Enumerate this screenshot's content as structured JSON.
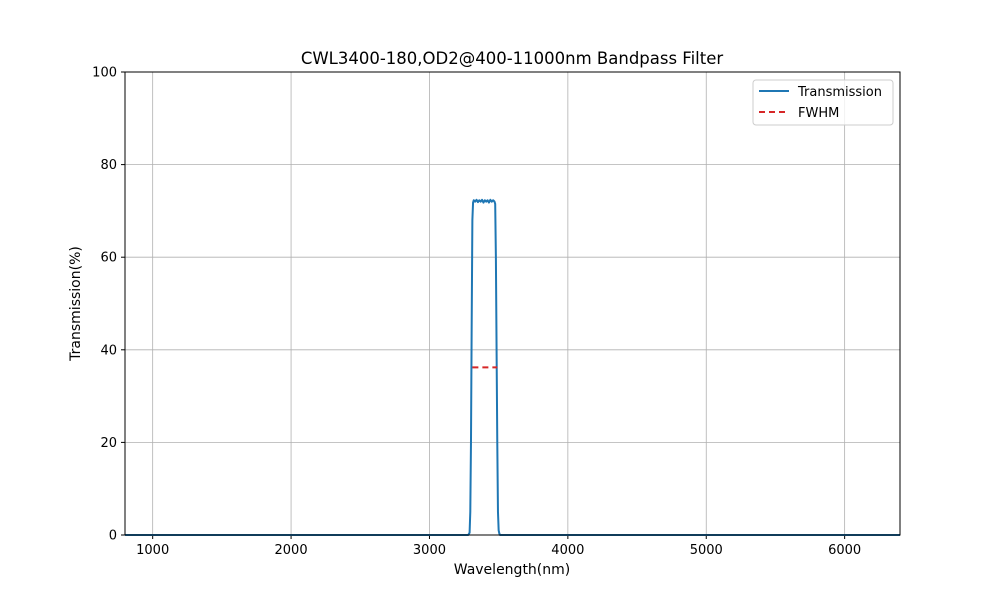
{
  "chart_data": {
    "type": "line",
    "title": "CWL3400-180,OD2@400-11000nm Bandpass Filter",
    "xlabel": "Wavelength(nm)",
    "ylabel": "Transmission(%)",
    "xlim": [
      800,
      6400
    ],
    "ylim": [
      0,
      100
    ],
    "xticks": [
      1000,
      2000,
      3000,
      4000,
      5000,
      6000
    ],
    "yticks": [
      0,
      20,
      40,
      60,
      80,
      100
    ],
    "grid": true,
    "legend_position": "top-right",
    "series": [
      {
        "name": "Transmission",
        "color": "#1f77b4",
        "style": "solid",
        "x": [
          800,
          3280,
          3290,
          3295,
          3300,
          3305,
          3310,
          3315,
          3320,
          3330,
          3340,
          3350,
          3360,
          3370,
          3380,
          3390,
          3400,
          3410,
          3420,
          3430,
          3440,
          3450,
          3460,
          3470,
          3475,
          3480,
          3485,
          3490,
          3495,
          3500,
          3505,
          3510,
          3520,
          6400
        ],
        "y": [
          0,
          0,
          0.5,
          5,
          20,
          45,
          68,
          71.8,
          72.3,
          72.0,
          72.4,
          71.9,
          72.3,
          72.0,
          72.4,
          71.8,
          72.3,
          72.0,
          72.3,
          71.8,
          72.4,
          72.0,
          72.3,
          72.0,
          71.5,
          60,
          40,
          20,
          5,
          1,
          0.3,
          0,
          0,
          0
        ]
      },
      {
        "name": "FWHM",
        "color": "#d62728",
        "style": "dashed",
        "x": [
          3310,
          3490
        ],
        "y": [
          36.2,
          36.2
        ]
      }
    ]
  }
}
